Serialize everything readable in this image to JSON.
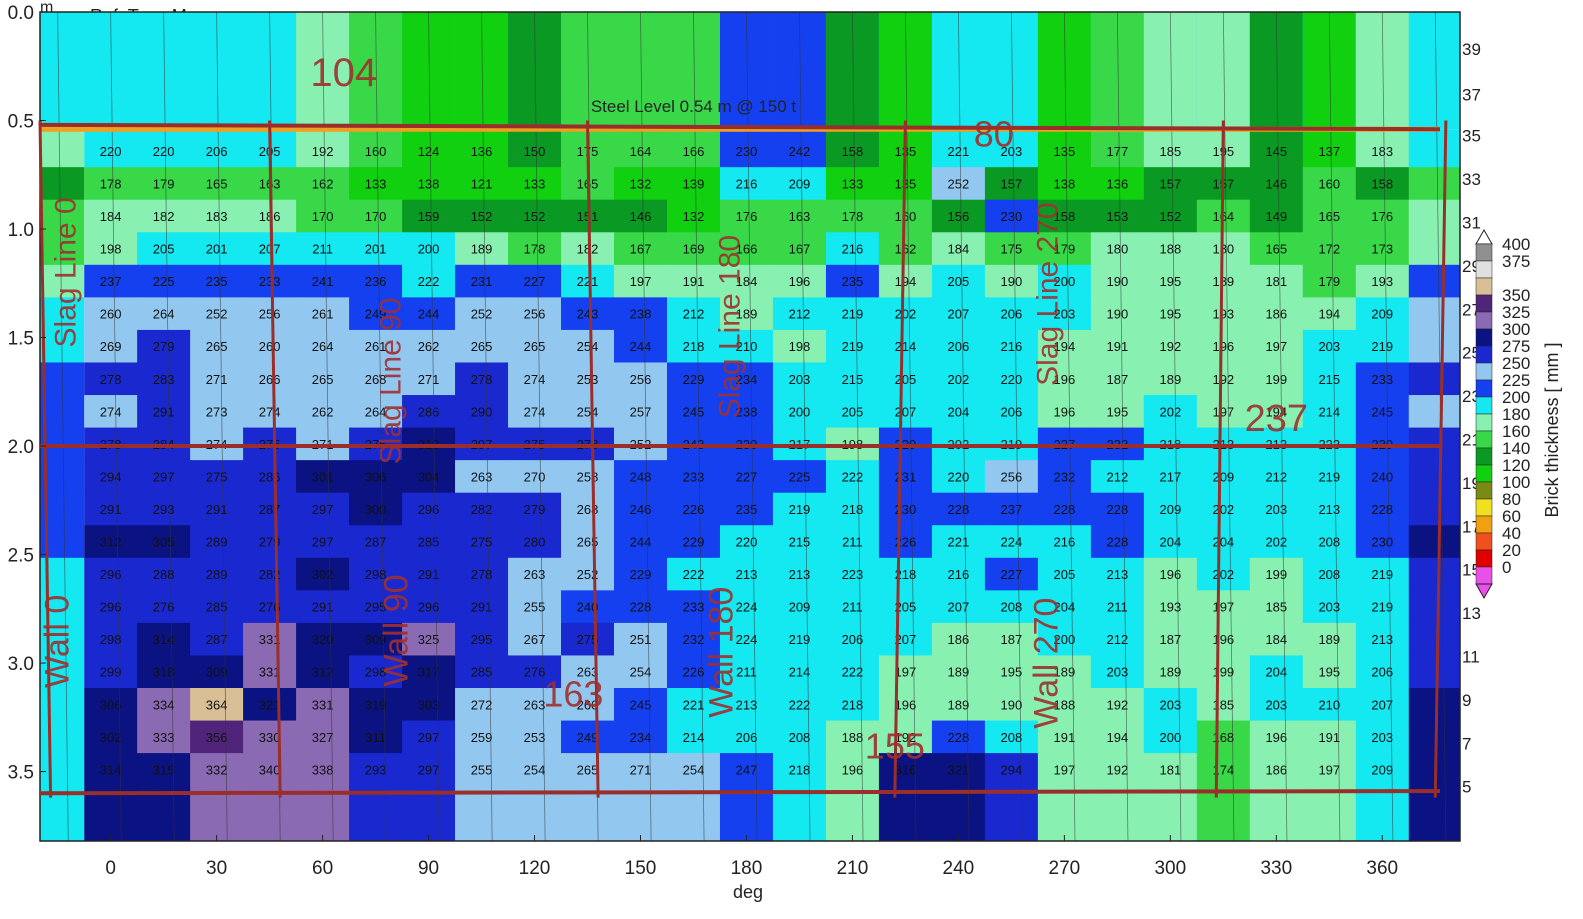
{
  "chart_data": {
    "type": "heatmap",
    "title": "",
    "header_text": "Ref. Typ : Measure",
    "xlabel": "deg",
    "y_unit": "m",
    "colorbar_label": "Brick thickness [ mm ]",
    "xlim": [
      -20,
      382
    ],
    "ylim": [
      0.0,
      3.82
    ],
    "x_ticks": [
      "0",
      "30",
      "60",
      "90",
      "120",
      "150",
      "180",
      "210",
      "240",
      "270",
      "300",
      "330",
      "360"
    ],
    "x_tick_values": [
      0,
      30,
      60,
      90,
      120,
      150,
      180,
      210,
      240,
      270,
      300,
      330,
      360
    ],
    "y_ticks": [
      "0.0",
      "0.5",
      "1.0",
      "1.5",
      "2.0",
      "2.5",
      "3.0",
      "3.5"
    ],
    "y_tick_values": [
      0.0,
      0.5,
      1.0,
      1.5,
      2.0,
      2.5,
      3.0,
      3.5
    ],
    "right_ticks": [
      "39",
      "37",
      "35",
      "33",
      "31",
      "29",
      "27",
      "25",
      "23",
      "21",
      "19",
      "17",
      "15",
      "13",
      "11",
      "9",
      "7",
      "5"
    ],
    "right_tick_values": [
      0.17,
      0.38,
      0.57,
      0.77,
      0.97,
      1.17,
      1.37,
      1.57,
      1.77,
      1.97,
      2.17,
      2.37,
      2.57,
      2.77,
      2.97,
      3.17,
      3.37,
      3.57
    ],
    "colorbar": [
      {
        "label": "400",
        "color": "#909090"
      },
      {
        "label": "375",
        "color": "#e0e0e0"
      },
      {
        "label": "",
        "color": "#d8bf96"
      },
      {
        "label": "350",
        "color": "#50247a"
      },
      {
        "label": "325",
        "color": "#8a6ab2"
      },
      {
        "label": "300",
        "color": "#0b1282"
      },
      {
        "label": "275",
        "color": "#1a28d0"
      },
      {
        "label": "250",
        "color": "#92c8f0"
      },
      {
        "label": "225",
        "color": "#1440f0"
      },
      {
        "label": "200",
        "color": "#14e8f0"
      },
      {
        "label": "180",
        "color": "#88f0b0"
      },
      {
        "label": "160",
        "color": "#38d848"
      },
      {
        "label": "140",
        "color": "#0a9a24"
      },
      {
        "label": "120",
        "color": "#10d010"
      },
      {
        "label": "100",
        "color": "#7a8a14"
      },
      {
        "label": "80",
        "color": "#f0e020"
      },
      {
        "label": "60",
        "color": "#f0a010"
      },
      {
        "label": "40",
        "color": "#f05020"
      },
      {
        "label": "20",
        "color": "#e00000"
      },
      {
        "label": "0",
        "color": "#e850e8"
      }
    ],
    "steel_level_text": "Steel Level 0.54 m @ 150 t",
    "steel_level_m": 0.54,
    "columns_deg": [
      0,
      15,
      30,
      45,
      60,
      75,
      90,
      105,
      120,
      135,
      150,
      165,
      180,
      195,
      210,
      225,
      240,
      255,
      270,
      285,
      300,
      315,
      330,
      345,
      360
    ],
    "rows": [
      {
        "y": 0.64,
        "values": [
          220,
          220,
          206,
          205,
          192,
          160,
          124,
          136,
          150,
          175,
          164,
          166,
          230,
          242,
          158,
          135,
          221,
          203,
          135,
          177,
          185,
          195,
          145,
          137,
          183
        ]
      },
      {
        "y": 0.79,
        "values": [
          178,
          179,
          165,
          163,
          162,
          133,
          138,
          121,
          133,
          165,
          132,
          139,
          216,
          209,
          133,
          135,
          252,
          157,
          138,
          136,
          157,
          157,
          146,
          160,
          158
        ]
      },
      {
        "y": 0.94,
        "values": [
          184,
          182,
          183,
          186,
          170,
          170,
          159,
          152,
          152,
          151,
          146,
          132,
          176,
          163,
          178,
          160,
          156,
          230,
          158,
          153,
          152,
          164,
          149,
          165,
          176
        ]
      },
      {
        "y": 1.09,
        "values": [
          198,
          205,
          201,
          207,
          211,
          201,
          200,
          189,
          178,
          182,
          167,
          169,
          166,
          167,
          216,
          162,
          184,
          175,
          179,
          180,
          188,
          180,
          165,
          172,
          173
        ]
      },
      {
        "y": 1.24,
        "values": [
          237,
          225,
          235,
          233,
          241,
          236,
          222,
          231,
          227,
          221,
          197,
          191,
          184,
          196,
          235,
          194,
          205,
          190,
          200,
          190,
          195,
          189,
          181,
          179,
          193
        ]
      },
      {
        "y": 1.39,
        "values": [
          260,
          264,
          252,
          256,
          261,
          249,
          244,
          252,
          256,
          243,
          238,
          212,
          189,
          212,
          219,
          202,
          207,
          206,
          203,
          190,
          195,
          193,
          186,
          194,
          209
        ]
      },
      {
        "y": 1.54,
        "values": [
          269,
          279,
          265,
          260,
          264,
          261,
          262,
          265,
          265,
          254,
          244,
          218,
          210,
          198,
          219,
          214,
          206,
          216,
          194,
          191,
          192,
          196,
          197,
          203,
          219
        ]
      },
      {
        "y": 1.69,
        "values": [
          278,
          283,
          271,
          266,
          265,
          268,
          271,
          278,
          274,
          253,
          256,
          229,
          234,
          203,
          215,
          205,
          202,
          220,
          196,
          187,
          189,
          192,
          199,
          215,
          233
        ]
      },
      {
        "y": 1.84,
        "values": [
          274,
          291,
          273,
          274,
          262,
          264,
          286,
          290,
          274,
          254,
          257,
          245,
          238,
          200,
          205,
          207,
          204,
          206,
          196,
          195,
          202,
          197,
          194,
          214,
          245
        ]
      },
      {
        "y": 1.99,
        "values": [
          278,
          284,
          274,
          275,
          271,
          276,
          313,
          297,
          275,
          278,
          252,
          243,
          230,
          217,
          198,
          229,
          202,
          219,
          227,
          232,
          218,
          213,
          213,
          223,
          229
        ]
      },
      {
        "y": 2.14,
        "values": [
          294,
          297,
          275,
          286,
          301,
          306,
          304,
          263,
          270,
          258,
          248,
          233,
          227,
          225,
          222,
          231,
          220,
          256,
          232,
          212,
          217,
          209,
          212,
          219,
          240
        ]
      },
      {
        "y": 2.29,
        "values": [
          291,
          293,
          291,
          287,
          297,
          300,
          296,
          282,
          279,
          268,
          246,
          226,
          235,
          219,
          218,
          230,
          228,
          237,
          228,
          228,
          209,
          202,
          203,
          213,
          228
        ]
      },
      {
        "y": 2.44,
        "values": [
          312,
          305,
          289,
          279,
          297,
          287,
          285,
          275,
          280,
          265,
          244,
          229,
          220,
          215,
          211,
          226,
          221,
          224,
          216,
          228,
          204,
          204,
          202,
          208,
          230
        ]
      },
      {
        "y": 2.59,
        "values": [
          296,
          288,
          289,
          282,
          302,
          298,
          291,
          278,
          263,
          252,
          229,
          222,
          213,
          213,
          223,
          218,
          216,
          227,
          205,
          213,
          196,
          202,
          199,
          208,
          219
        ]
      },
      {
        "y": 2.74,
        "values": [
          296,
          276,
          285,
          276,
          291,
          295,
          296,
          291,
          255,
          240,
          228,
          233,
          224,
          209,
          211,
          205,
          207,
          208,
          204,
          211,
          193,
          197,
          185,
          203,
          219
        ]
      },
      {
        "y": 2.89,
        "values": [
          298,
          314,
          287,
          331,
          320,
          309,
          325,
          295,
          267,
          275,
          251,
          232,
          224,
          219,
          206,
          207,
          186,
          187,
          200,
          212,
          187,
          196,
          184,
          189,
          213
        ]
      },
      {
        "y": 3.04,
        "values": [
          299,
          318,
          309,
          331,
          312,
          298,
          317,
          285,
          276,
          263,
          254,
          226,
          211,
          214,
          222,
          197,
          189,
          195,
          189,
          203,
          189,
          199,
          204,
          195,
          206
        ]
      },
      {
        "y": 3.19,
        "values": [
          306,
          334,
          364,
          321,
          331,
          319,
          303,
          272,
          263,
          260,
          245,
          221,
          213,
          222,
          218,
          196,
          189,
          190,
          188,
          192,
          203,
          185,
          203,
          210,
          207
        ]
      },
      {
        "y": 3.34,
        "values": [
          302,
          333,
          356,
          330,
          327,
          311,
          297,
          259,
          253,
          249,
          234,
          214,
          206,
          208,
          188,
          192,
          228,
          208,
          191,
          194,
          200,
          168,
          196,
          191,
          203
        ]
      },
      {
        "y": 3.49,
        "values": [
          314,
          315,
          332,
          340,
          338,
          293,
          297,
          255,
          254,
          265,
          271,
          254,
          247,
          218,
          196,
          316,
          321,
          294,
          197,
          192,
          181,
          174,
          186,
          197,
          209
        ]
      }
    ],
    "annotations": [
      {
        "text": "Slag Line 0",
        "x": -10,
        "y": 1.2,
        "rotate": -90,
        "size": 30
      },
      {
        "text": "Slag Line 90",
        "x": 82,
        "y": 1.7,
        "rotate": -90,
        "size": 30
      },
      {
        "text": "Slag Line 180",
        "x": 178,
        "y": 1.45,
        "rotate": -90,
        "size": 30
      },
      {
        "text": "Slag Line 270",
        "x": 268,
        "y": 1.3,
        "rotate": -90,
        "size": 30
      },
      {
        "text": "Wall 0",
        "x": -12,
        "y": 2.9,
        "rotate": -90,
        "size": 34
      },
      {
        "text": "Wall 90",
        "x": 84,
        "y": 2.85,
        "rotate": -90,
        "size": 34
      },
      {
        "text": "Wall 180",
        "x": 176,
        "y": 2.95,
        "rotate": -90,
        "size": 34
      },
      {
        "text": "Wall 270",
        "x": 268,
        "y": 3.0,
        "rotate": -90,
        "size": 34
      },
      {
        "text": "104",
        "x": 66,
        "y": 0.34,
        "rotate": 0,
        "size": 40
      },
      {
        "text": "80",
        "x": 250,
        "y": 0.62,
        "rotate": 0,
        "size": 36
      },
      {
        "text": "163",
        "x": 131,
        "y": 3.2,
        "rotate": 0,
        "size": 36
      },
      {
        "text": "155",
        "x": 222,
        "y": 3.44,
        "rotate": 0,
        "size": 36
      },
      {
        "text": "237",
        "x": 330,
        "y": 1.93,
        "rotate": 0,
        "size": 38
      }
    ]
  }
}
